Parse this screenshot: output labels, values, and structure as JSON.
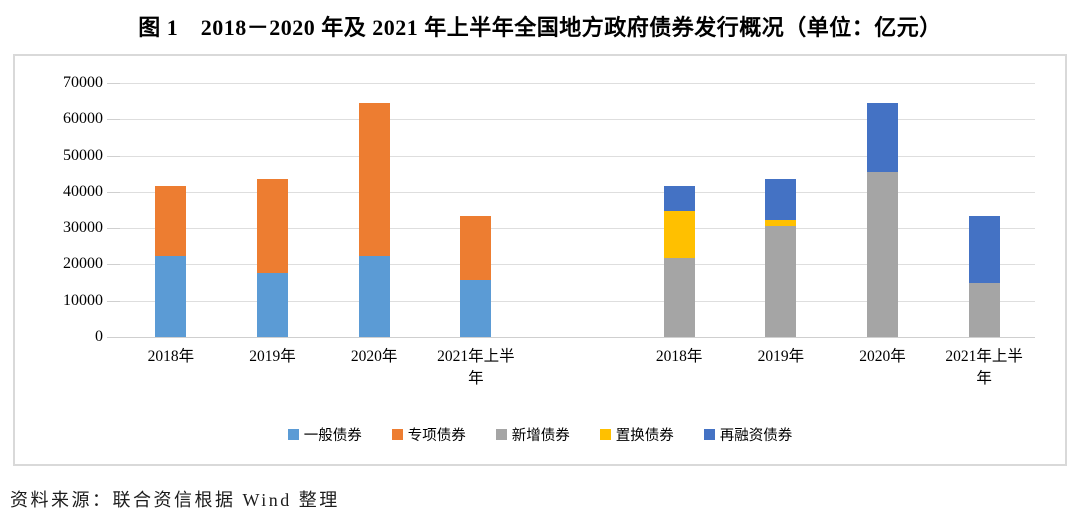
{
  "title": "图 1　2018－2020 年及 2021 年上半年全国地方政府债券发行概况（单位：亿元）",
  "source_note": "资料来源：联合资信根据 Wind 整理",
  "colors": {
    "general_bond": "#5B9BD5",
    "special_bond": "#ED7D31",
    "new_bond": "#A5A5A5",
    "swap_bond": "#FFC000",
    "refinancing_bond": "#4472C4",
    "gridline": "#DEDEDE",
    "frame_border": "#D9D9D9"
  },
  "chart_data": {
    "type": "bar",
    "stacked": true,
    "unit_label": "亿元",
    "ylim": [
      0,
      70000
    ],
    "yticks": [
      0,
      10000,
      20000,
      30000,
      40000,
      50000,
      60000,
      70000
    ],
    "grid": true,
    "legend_position": "bottom",
    "categories": [
      "2018年",
      "2019年",
      "2020年",
      "2021年上半年"
    ],
    "groups": [
      {
        "series": [
          {
            "name": "一般债券",
            "color": "#5B9BD5",
            "values": [
              22200,
              17700,
              22400,
              15700
            ]
          },
          {
            "name": "专项债券",
            "color": "#ED7D31",
            "values": [
              19500,
              25900,
              42000,
              17700
            ]
          }
        ]
      },
      {
        "series": [
          {
            "name": "新增债券",
            "color": "#A5A5A5",
            "values": [
              21700,
              30600,
              45500,
              14800
            ]
          },
          {
            "name": "置换债券",
            "color": "#FFC000",
            "values": [
              13000,
              1600,
              0,
              0
            ]
          },
          {
            "name": "再融资债券",
            "color": "#4472C4",
            "values": [
              7000,
              11400,
              18900,
              18600
            ]
          }
        ]
      }
    ],
    "totals_by_group": [
      [
        41700,
        43600,
        64400,
        33400
      ],
      [
        41700,
        43600,
        64400,
        33400
      ]
    ],
    "legend": [
      {
        "label": "一般债券",
        "color": "#5B9BD5"
      },
      {
        "label": "专项债券",
        "color": "#ED7D31"
      },
      {
        "label": "新增债券",
        "color": "#A5A5A5"
      },
      {
        "label": "置换债券",
        "color": "#FFC000"
      },
      {
        "label": "再融资债券",
        "color": "#4472C4"
      }
    ]
  }
}
